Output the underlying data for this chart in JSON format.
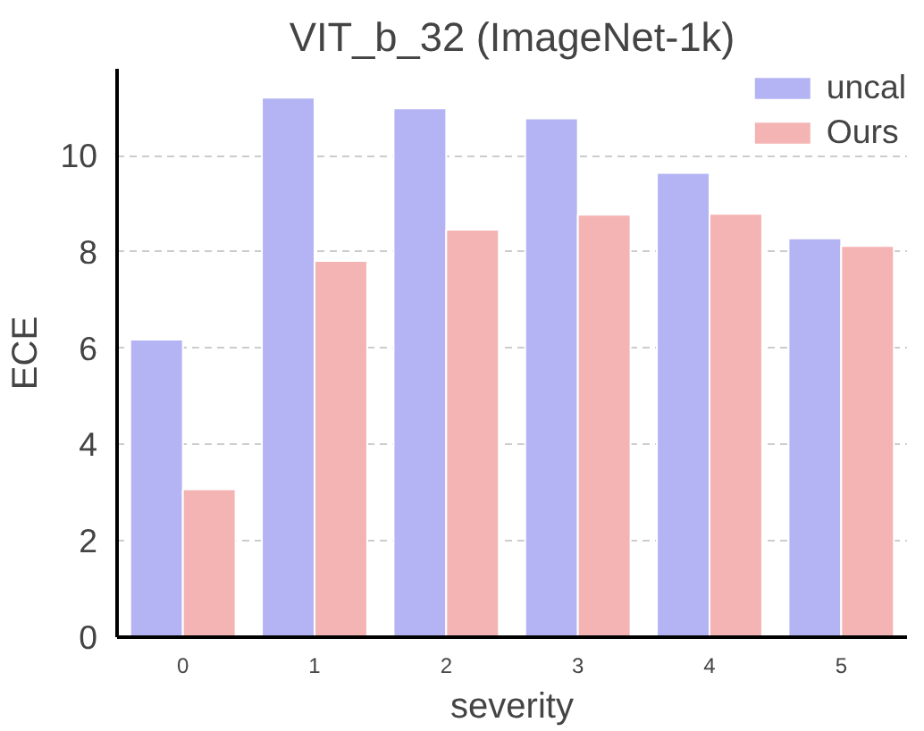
{
  "chart_data": {
    "type": "bar",
    "title": "VIT_b_32 (ImageNet-1k)",
    "xlabel": "severity",
    "ylabel": "ECE",
    "categories": [
      "0",
      "1",
      "2",
      "3",
      "4",
      "5"
    ],
    "series": [
      {
        "name": "uncal",
        "color": "#b4b4f4",
        "values": [
          6.18,
          11.2,
          10.98,
          10.77,
          9.64,
          8.28
        ]
      },
      {
        "name": "Ours",
        "color": "#f4b4b4",
        "values": [
          3.07,
          7.81,
          8.46,
          8.77,
          8.79,
          8.12
        ]
      }
    ],
    "ylim": [
      0,
      11.8
    ],
    "yticks": [
      0,
      2,
      4,
      6,
      8,
      10
    ],
    "grid": "y",
    "legend": "top right"
  }
}
